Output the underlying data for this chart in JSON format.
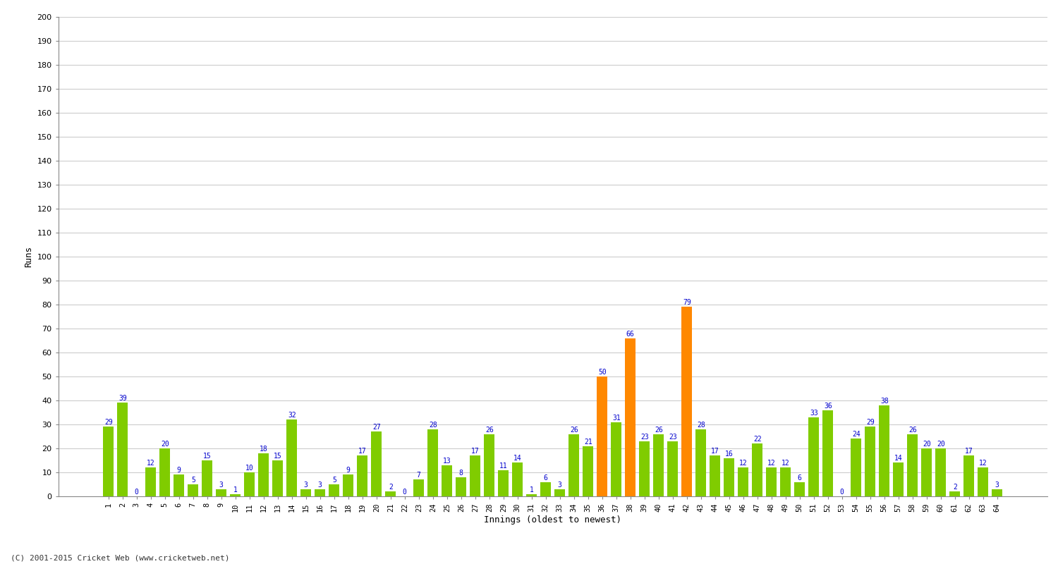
{
  "xlabel": "Innings (oldest to newest)",
  "ylabel": "Runs",
  "ylim": [
    0,
    200
  ],
  "yticks": [
    0,
    10,
    20,
    30,
    40,
    50,
    60,
    70,
    80,
    90,
    100,
    110,
    120,
    130,
    140,
    150,
    160,
    170,
    180,
    190,
    200
  ],
  "values": [
    29,
    39,
    0,
    12,
    20,
    9,
    5,
    15,
    3,
    1,
    10,
    18,
    15,
    32,
    3,
    3,
    5,
    9,
    17,
    27,
    2,
    0,
    7,
    28,
    13,
    8,
    17,
    26,
    11,
    14,
    1,
    6,
    3,
    26,
    21,
    50,
    31,
    66,
    23,
    26,
    23,
    79,
    28,
    17,
    16,
    12,
    22,
    12,
    12,
    6,
    33,
    36,
    0,
    24,
    29,
    38,
    14,
    26,
    20,
    20,
    2,
    17,
    12,
    3
  ],
  "labels": [
    "1",
    "2",
    "3",
    "4",
    "5",
    "6",
    "7",
    "8",
    "9",
    "10",
    "11",
    "12",
    "13",
    "14",
    "15",
    "16",
    "17",
    "18",
    "19",
    "20",
    "21",
    "22",
    "23",
    "24",
    "25",
    "26",
    "27",
    "28",
    "29",
    "30",
    "31",
    "32",
    "33",
    "34",
    "35",
    "36",
    "37",
    "38",
    "39",
    "40",
    "41",
    "42",
    "43",
    "44",
    "45",
    "46",
    "47",
    "48",
    "49",
    "50",
    "51",
    "52",
    "53",
    "54",
    "55",
    "56",
    "57",
    "58",
    "59",
    "60",
    "61",
    "62",
    "63",
    "64"
  ],
  "orange_indices": [
    35,
    37,
    41
  ],
  "bar_color_green": "#80cc00",
  "bar_color_orange": "#ff8800",
  "label_color": "#0000cc",
  "bg_color": "#ffffff",
  "grid_color": "#cccccc",
  "footer": "(C) 2001-2015 Cricket Web (www.cricketweb.net)"
}
